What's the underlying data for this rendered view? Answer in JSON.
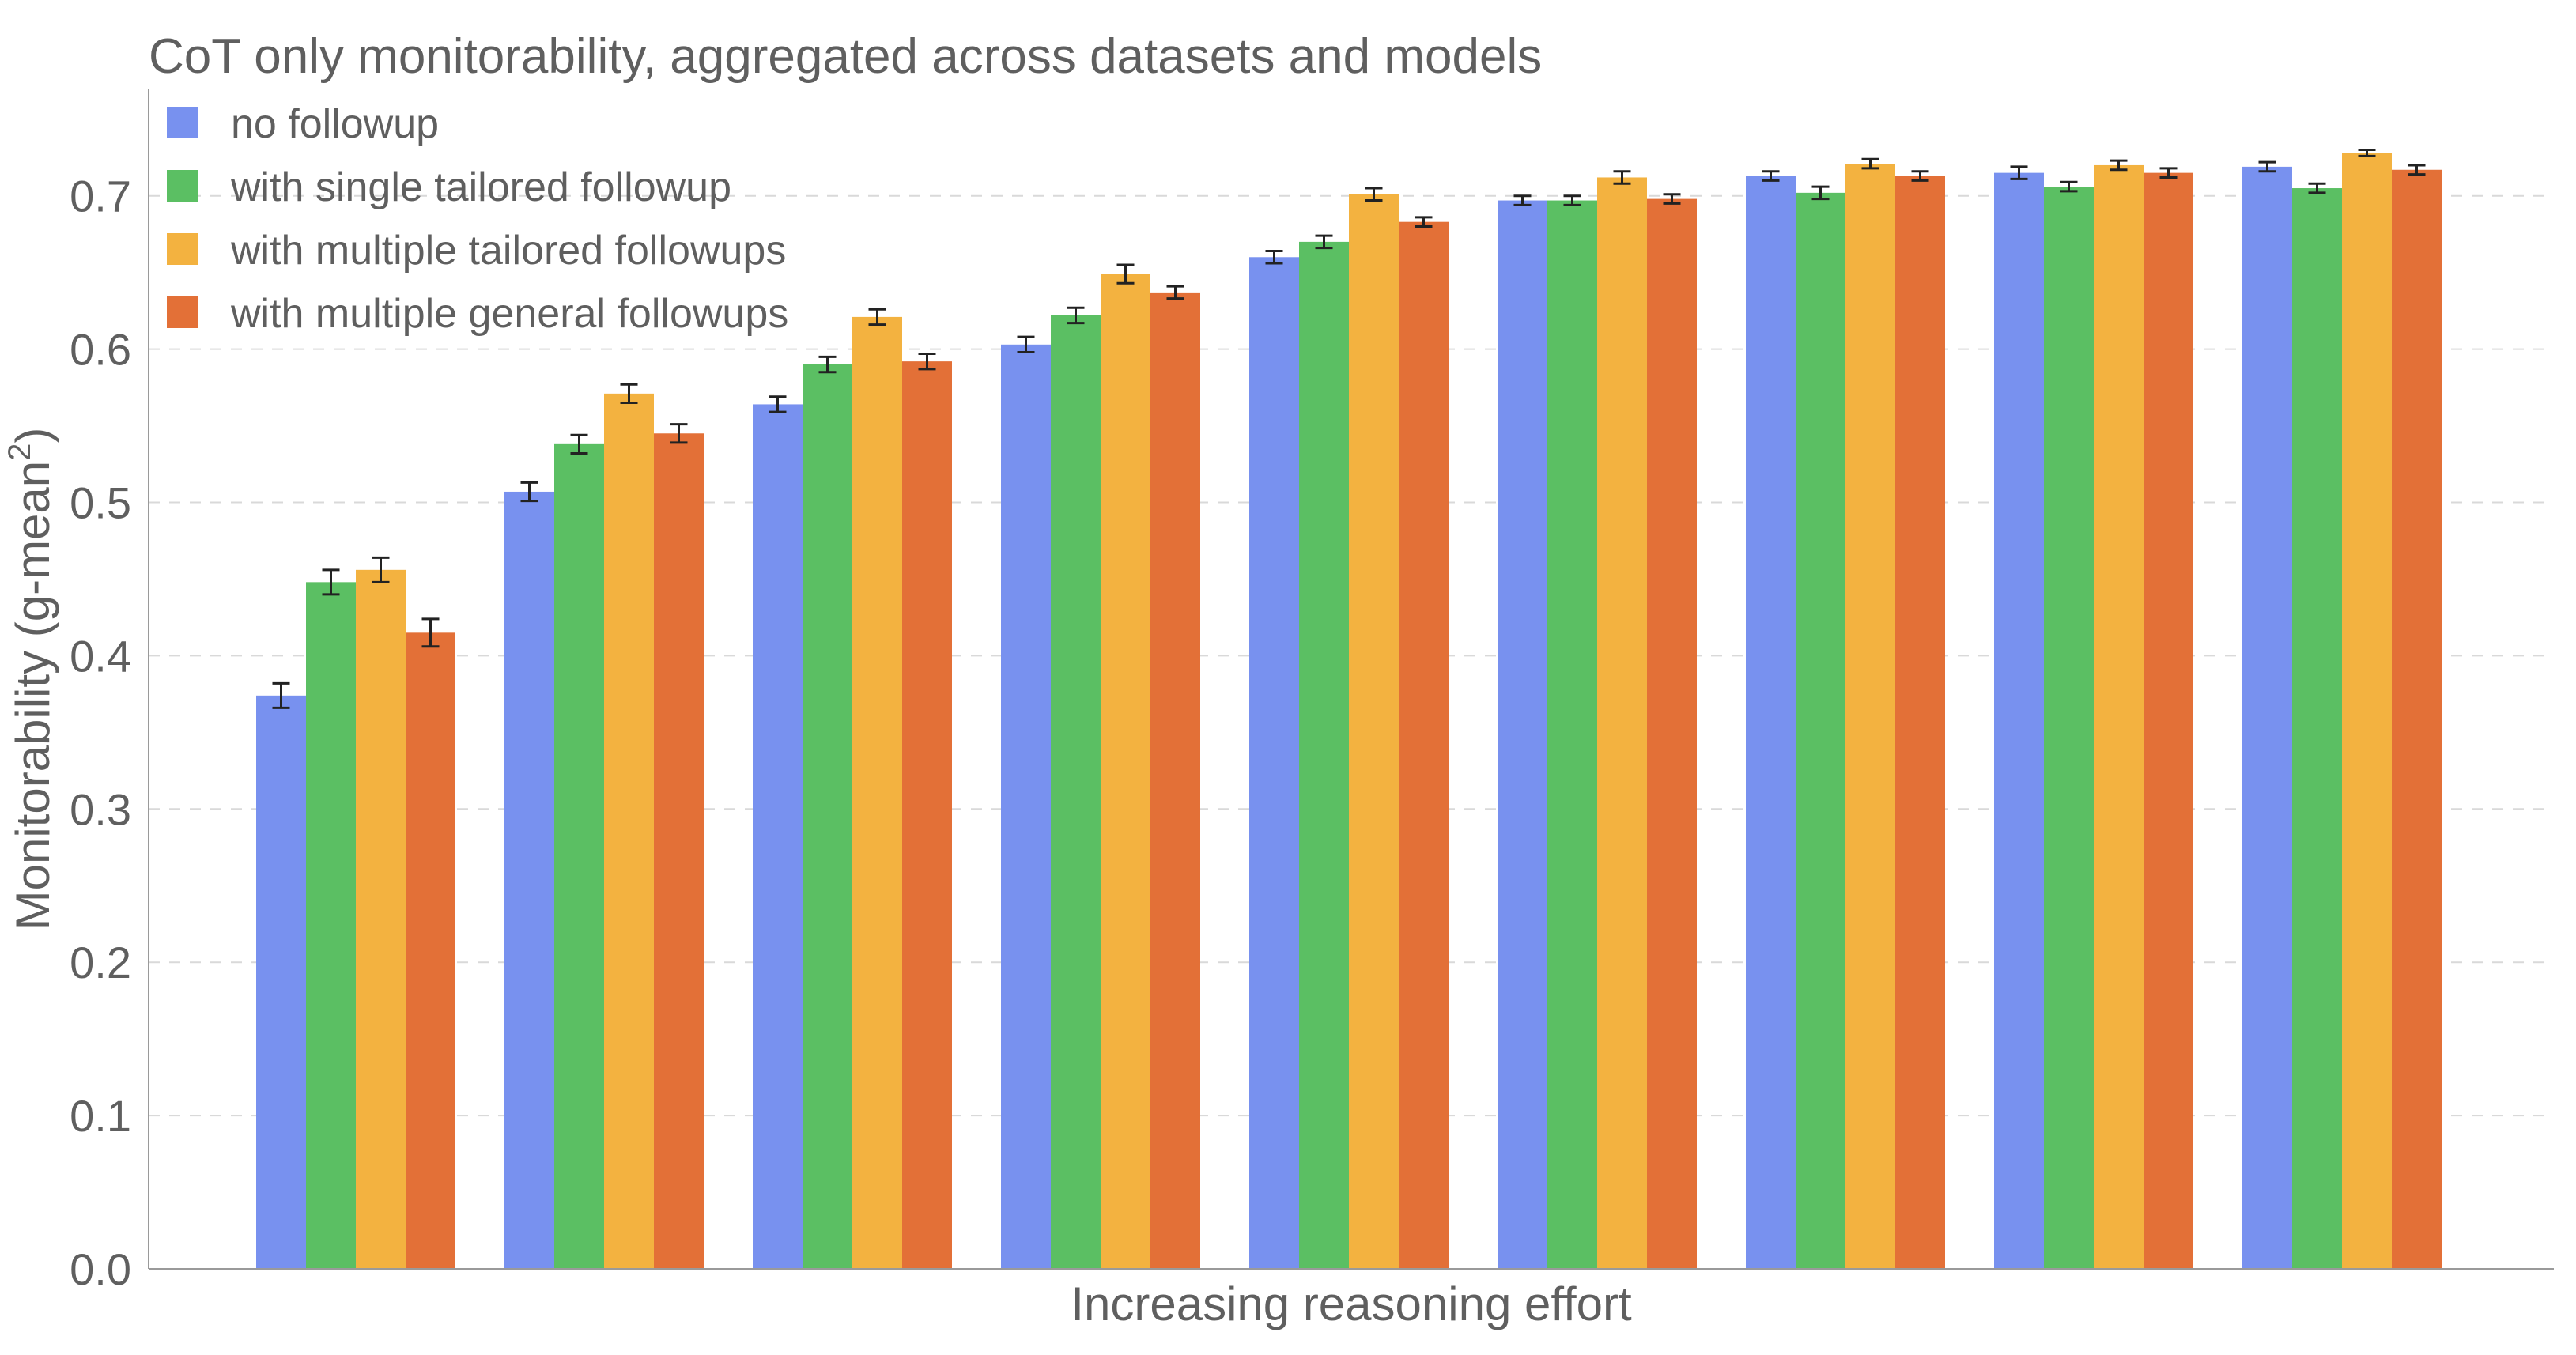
{
  "chart_data": {
    "type": "bar",
    "title": "CoT only monitorability, aggregated across datasets and models",
    "xlabel": "Increasing reasoning effort",
    "ylabel": "Monitorability (g-mean",
    "ylabel_sup": "2",
    "ylabel_close": ")",
    "ylim": [
      0,
      0.77
    ],
    "yticks": [
      "0.0",
      "0.1",
      "0.2",
      "0.3",
      "0.4",
      "0.5",
      "0.6",
      "0.7"
    ],
    "ytick_values": [
      0.0,
      0.1,
      0.2,
      0.3,
      0.4,
      0.5,
      0.6,
      0.7
    ],
    "grid": true,
    "legend_position": "top-left",
    "categories": [
      "",
      "",
      "",
      "",
      "",
      "",
      "",
      "",
      ""
    ],
    "series": [
      {
        "name": "no followup",
        "color": "#7891ef",
        "values": [
          0.374,
          0.507,
          0.564,
          0.603,
          0.66,
          0.697,
          0.713,
          0.715,
          0.719
        ],
        "errors": [
          0.008,
          0.006,
          0.005,
          0.005,
          0.004,
          0.003,
          0.003,
          0.004,
          0.003
        ]
      },
      {
        "name": "with single tailored followup",
        "color": "#5bbf63",
        "values": [
          0.448,
          0.538,
          0.59,
          0.622,
          0.67,
          0.697,
          0.702,
          0.706,
          0.705
        ],
        "errors": [
          0.008,
          0.006,
          0.005,
          0.005,
          0.004,
          0.003,
          0.004,
          0.003,
          0.003
        ]
      },
      {
        "name": "with multiple tailored followups",
        "color": "#f3b240",
        "values": [
          0.456,
          0.571,
          0.621,
          0.649,
          0.701,
          0.712,
          0.721,
          0.72,
          0.728
        ],
        "errors": [
          0.008,
          0.006,
          0.005,
          0.006,
          0.004,
          0.004,
          0.003,
          0.003,
          0.002
        ]
      },
      {
        "name": "with multiple general followups",
        "color": "#e37037",
        "values": [
          0.415,
          0.545,
          0.592,
          0.637,
          0.683,
          0.698,
          0.713,
          0.715,
          0.717
        ],
        "errors": [
          0.009,
          0.006,
          0.005,
          0.004,
          0.003,
          0.003,
          0.003,
          0.003,
          0.003
        ]
      }
    ]
  }
}
